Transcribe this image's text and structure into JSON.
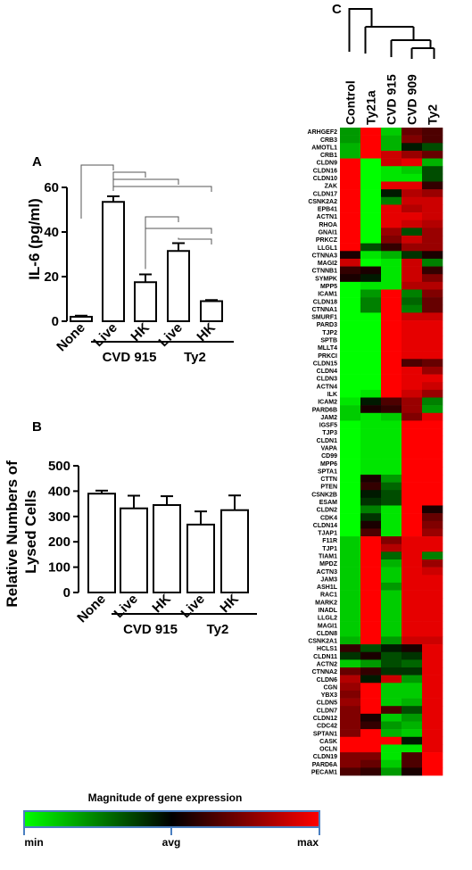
{
  "chart_data": [
    {
      "type": "bar",
      "panel": "A",
      "ylabel": "IL-6 (pg/ml)",
      "ylim": [
        0,
        60
      ],
      "yticks": [
        0,
        20,
        40,
        60
      ],
      "categories": [
        "None",
        "Live",
        "HK",
        "Live",
        "HK"
      ],
      "groups": [
        {
          "label": "CVD 915",
          "members": [
            1,
            2
          ]
        },
        {
          "label": "Ty2",
          "members": [
            3,
            4
          ]
        }
      ],
      "values": [
        2,
        53.5,
        17.5,
        31.5,
        9
      ],
      "errors": [
        0.5,
        2.5,
        3.5,
        3.5,
        0.5
      ]
    },
    {
      "type": "bar",
      "panel": "B",
      "ylabel": "Relative Numbers of Lysed Cells",
      "ylim": [
        0,
        500
      ],
      "yticks": [
        0,
        100,
        200,
        300,
        400,
        500
      ],
      "categories": [
        "None",
        "Live",
        "HK",
        "Live",
        "HK"
      ],
      "groups": [
        {
          "label": "CVD 915",
          "members": [
            1,
            2
          ]
        },
        {
          "label": "Ty2",
          "members": [
            3,
            4
          ]
        }
      ],
      "values": [
        390,
        332,
        345,
        268,
        325
      ],
      "errors": [
        12,
        50,
        35,
        52,
        58
      ]
    },
    {
      "type": "heatmap",
      "panel": "C",
      "columns": [
        "Control",
        "Ty21a",
        "CVD 915",
        "CVD 909",
        "Ty2"
      ],
      "rows": [
        "ARHGEF2",
        "CRB3",
        "AMOTL1",
        "CRB1",
        "CLDN9",
        "CLDN16",
        "CLDN10",
        "ZAK",
        "CLDN17",
        "CSNK2A2",
        "EPB41",
        "ACTN1",
        "RHOA",
        "GNAI1",
        "PRKCZ",
        "LLGL1",
        "CTNNA3",
        "MAGI2",
        "CTNNB1",
        "SYMPK",
        "MPP5",
        "ICAM1",
        "CLDN18",
        "CTNNA1",
        "SMURF1",
        "PARD3",
        "TJP2",
        "SPTB",
        "MLLT4",
        "PRKCI",
        "CLDN15",
        "CLDN4",
        "CLDN3",
        "ACTN4",
        "ILK",
        "ICAM2",
        "PARD6B",
        "JAM2",
        "IGSF5",
        "TJP3",
        "CLDN1",
        "VAPA",
        "CD99",
        "MPP6",
        "SPTA1",
        "CTTN",
        "PTEN",
        "CSNK2B",
        "ESAM",
        "CLDN2",
        "CDK4",
        "CLDN14",
        "TJAP1",
        "F11R",
        "TJP1",
        "TIAM1",
        "MPDZ",
        "ACTN3",
        "JAM3",
        "ASH1L",
        "RAC1",
        "MARK2",
        "INADL",
        "LLGL2",
        "MAGI1",
        "CLDN8",
        "CSNK2A1",
        "HCLS1",
        "CLDN11",
        "ACTN2",
        "CTNNA2",
        "CLDN6",
        "CGN",
        "YBX3",
        "CLDN5",
        "CLDN7",
        "CLDN12",
        "CDC42",
        "SPTAN1",
        "CASK",
        "OCLN",
        "CLDN19",
        "PARD6A",
        "PECAM1"
      ],
      "color_scale": {
        "min_color": "#00ff00",
        "avg_color": "#000000",
        "max_color": "#ff0000"
      },
      "values": [
        [
          -0.6,
          1,
          -0.8,
          0.4,
          0.3
        ],
        [
          -0.6,
          1,
          -0.7,
          0.5,
          0.3
        ],
        [
          -0.7,
          1,
          -0.7,
          -0.1,
          -0.3
        ],
        [
          -0.7,
          1,
          0.8,
          0.6,
          0.4
        ],
        [
          1,
          -1,
          0.8,
          0.9,
          -0.7
        ],
        [
          1,
          -1,
          -0.9,
          -0.8,
          -0.3
        ],
        [
          1,
          -1,
          -0.9,
          -0.9,
          -0.3
        ],
        [
          1,
          -1,
          0.9,
          0.9,
          0.2
        ],
        [
          1,
          -1,
          -0.1,
          0.7,
          0.6
        ],
        [
          1,
          -1,
          -0.5,
          0.8,
          0.8
        ],
        [
          1,
          -1,
          0.9,
          0.7,
          0.8
        ],
        [
          1,
          -1,
          0.9,
          0.9,
          0.8
        ],
        [
          1,
          -1,
          0.9,
          0.8,
          0.7
        ],
        [
          1,
          -1,
          0.6,
          -0.3,
          0.6
        ],
        [
          1,
          -1,
          0.5,
          0.8,
          0.6
        ],
        [
          1,
          -0.3,
          0.2,
          0.6,
          0.6
        ],
        [
          0.1,
          -0.9,
          -0.7,
          -0.2,
          0.1
        ],
        [
          0.8,
          -1,
          -0.9,
          0.8,
          -0.5
        ],
        [
          0.2,
          0.1,
          -0.9,
          0.8,
          0.2
        ],
        [
          0.1,
          -0.1,
          -0.9,
          0.8,
          0.5
        ],
        [
          -1,
          -0.9,
          -0.9,
          0.7,
          0.7
        ],
        [
          -1,
          -0.6,
          1,
          -0.5,
          0.5
        ],
        [
          -1,
          -0.5,
          1,
          -0.4,
          0.4
        ],
        [
          -1,
          -0.5,
          1,
          -0.5,
          0.4
        ],
        [
          -1,
          -1,
          1,
          0.8,
          0.8
        ],
        [
          -1,
          -1,
          1,
          0.9,
          0.9
        ],
        [
          -1,
          -1,
          1,
          0.9,
          0.9
        ],
        [
          -1,
          -1,
          1,
          0.9,
          0.9
        ],
        [
          -1,
          -1,
          1,
          0.9,
          0.9
        ],
        [
          -1,
          -1,
          1,
          0.9,
          0.9
        ],
        [
          -1,
          -1,
          1,
          0.3,
          0.4
        ],
        [
          -1,
          -1,
          1,
          0.9,
          0.6
        ],
        [
          -1,
          -1,
          1,
          0.9,
          0.9
        ],
        [
          -1,
          -1,
          1,
          0.9,
          0.8
        ],
        [
          -1,
          -0.9,
          1,
          0.8,
          0.6
        ],
        [
          -0.9,
          -0.1,
          0.3,
          0.6,
          -0.5
        ],
        [
          -0.8,
          0.1,
          0.2,
          0.6,
          -0.6
        ],
        [
          -0.8,
          -0.9,
          -0.8,
          0.5,
          0.9
        ],
        [
          -1,
          -0.9,
          -0.9,
          1,
          1
        ],
        [
          -1,
          -0.9,
          -0.9,
          1,
          1
        ],
        [
          -1,
          -0.9,
          -0.9,
          1,
          1
        ],
        [
          -1,
          -0.9,
          -0.9,
          1,
          1
        ],
        [
          -1,
          -0.9,
          -0.9,
          1,
          1
        ],
        [
          -1,
          -0.9,
          -0.9,
          1,
          1
        ],
        [
          -1,
          -0.9,
          -0.9,
          1,
          1
        ],
        [
          -1,
          0.1,
          -0.6,
          1,
          1
        ],
        [
          -1,
          0.2,
          -0.4,
          1,
          1
        ],
        [
          -1,
          -0.1,
          -0.3,
          1,
          1
        ],
        [
          -1,
          -0.2,
          -0.3,
          1,
          1
        ],
        [
          -1,
          -0.5,
          -0.9,
          1,
          0.1
        ],
        [
          -1,
          -0.2,
          -0.9,
          1,
          0.4
        ],
        [
          -1,
          0.1,
          -0.9,
          1,
          0.5
        ],
        [
          -1,
          0.3,
          -0.9,
          1,
          0.6
        ],
        [
          -0.8,
          1,
          0.5,
          0.9,
          0.9
        ],
        [
          -0.8,
          1,
          0.7,
          0.9,
          0.9
        ],
        [
          -0.8,
          1,
          -0.4,
          0.9,
          -0.5
        ],
        [
          -0.8,
          1,
          -0.7,
          0.9,
          0.6
        ],
        [
          -0.8,
          1,
          -0.8,
          0.9,
          0.8
        ],
        [
          -0.8,
          1,
          -0.8,
          0.9,
          0.9
        ],
        [
          -0.8,
          1,
          -0.6,
          0.9,
          0.9
        ],
        [
          -0.8,
          1,
          -0.8,
          0.9,
          0.9
        ],
        [
          -0.8,
          1,
          -0.8,
          0.9,
          0.9
        ],
        [
          -0.8,
          1,
          -0.8,
          0.9,
          0.9
        ],
        [
          -0.8,
          1,
          -0.8,
          0.9,
          0.9
        ],
        [
          -0.8,
          1,
          -0.8,
          0.9,
          0.9
        ],
        [
          -0.8,
          1,
          -0.8,
          0.9,
          0.9
        ],
        [
          -0.7,
          1,
          -0.6,
          0.8,
          0.8
        ],
        [
          0.2,
          -0.3,
          -0.1,
          0.1,
          0.9
        ],
        [
          -0.2,
          0.1,
          -0.3,
          -0.2,
          0.9
        ],
        [
          -0.8,
          -0.6,
          -0.3,
          -0.4,
          0.9
        ],
        [
          0.4,
          0.2,
          -0.2,
          -0.2,
          0.9
        ],
        [
          0.7,
          -0.1,
          0.8,
          -0.6,
          0.9
        ],
        [
          0.6,
          1,
          -0.8,
          -0.8,
          0.9
        ],
        [
          0.5,
          1,
          -0.8,
          -0.8,
          0.9
        ],
        [
          0.6,
          1,
          -0.8,
          -0.7,
          0.9
        ],
        [
          0.5,
          1,
          0.3,
          -0.3,
          0.9
        ],
        [
          0.5,
          0.1,
          -0.8,
          -0.6,
          0.9
        ],
        [
          0.5,
          0.2,
          -0.6,
          -0.7,
          0.9
        ],
        [
          0.5,
          1,
          -0.7,
          -0.8,
          0.9
        ],
        [
          1,
          1,
          1,
          -0.1,
          0.9
        ],
        [
          1,
          1,
          -0.9,
          -0.9,
          0.9
        ],
        [
          0.5,
          0.5,
          -0.9,
          0.3,
          1
        ],
        [
          0.5,
          0.4,
          -0.8,
          0.3,
          1
        ],
        [
          0.3,
          0.2,
          -0.6,
          0.1,
          1
        ]
      ]
    }
  ],
  "legend": {
    "title": "Magnitude of gene expression",
    "min": "min",
    "avg": "avg",
    "max": "max"
  }
}
